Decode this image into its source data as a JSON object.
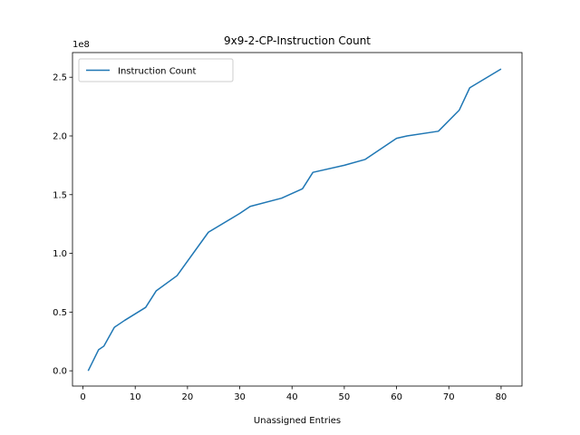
{
  "chart_data": {
    "type": "line",
    "title": "9x9-2-CP-Instruction Count",
    "xlabel": "Unassigned Entries",
    "ylabel": "",
    "y_scale_label": "1e8",
    "xlim": [
      -2,
      84
    ],
    "ylim": [
      -0.13,
      2.71
    ],
    "x_ticks": [
      0,
      10,
      20,
      30,
      40,
      50,
      60,
      70,
      80
    ],
    "y_ticks": [
      0.0,
      0.5,
      1.0,
      1.5,
      2.0,
      2.5
    ],
    "y_tick_labels": [
      "0.0",
      "0.5",
      "1.0",
      "1.5",
      "2.0",
      "2.5"
    ],
    "grid": false,
    "legend_position": "top-left",
    "series": [
      {
        "name": "Instruction Count",
        "color": "#1f77b4",
        "x": [
          1,
          3,
          4,
          6,
          8,
          12,
          14,
          18,
          24,
          30,
          32,
          38,
          42,
          44,
          50,
          54,
          60,
          62,
          68,
          72,
          74,
          80
        ],
        "y": [
          0.0,
          0.18,
          0.21,
          0.37,
          0.43,
          0.54,
          0.68,
          0.81,
          1.18,
          1.34,
          1.4,
          1.47,
          1.55,
          1.69,
          1.75,
          1.8,
          1.98,
          2.0,
          2.04,
          2.22,
          2.41,
          2.57
        ]
      }
    ]
  }
}
